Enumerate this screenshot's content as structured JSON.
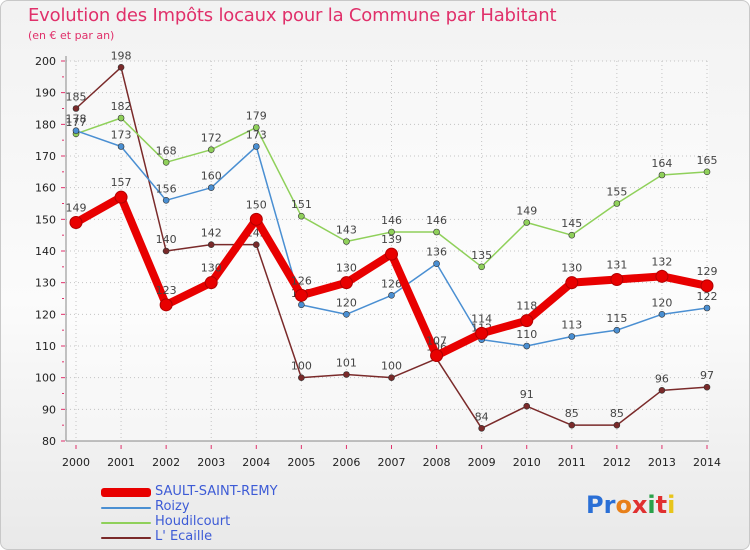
{
  "header": {
    "title": "Evolution des Impôts locaux pour la Commune par Habitant",
    "subtitle": "(en € et par an)"
  },
  "logo": {
    "text": "Proxiti",
    "colors": [
      "#2a6fd6",
      "#2a6fd6",
      "#e8801a",
      "#e03030",
      "#2aa14a",
      "#e03030",
      "#e8c51a"
    ]
  },
  "chart_data": {
    "type": "line",
    "x": [
      2000,
      2001,
      2002,
      2003,
      2004,
      2005,
      2006,
      2007,
      2008,
      2009,
      2010,
      2011,
      2012,
      2013,
      2014
    ],
    "ylim": [
      80,
      200
    ],
    "yticks": [
      80,
      90,
      100,
      110,
      120,
      130,
      140,
      150,
      160,
      170,
      180,
      190,
      200
    ],
    "grid": true,
    "legend_position": "bottom-left",
    "series": [
      {
        "name": "L' Ecaille",
        "color": "#7a2a2a",
        "values": [
          185,
          198,
          140,
          142,
          142,
          100,
          101,
          100,
          106,
          84,
          91,
          85,
          85,
          96,
          97
        ],
        "labels": [
          "185",
          "198",
          "140",
          "142",
          "142",
          "100",
          "101",
          "100",
          "106",
          "84",
          "91",
          "85",
          "85",
          "96",
          "97"
        ]
      },
      {
        "name": "Houdilcourt",
        "color": "#8fd05a",
        "values": [
          177,
          182,
          168,
          172,
          179,
          151,
          143,
          146,
          146,
          135,
          149,
          145,
          155,
          164,
          165
        ],
        "labels": [
          "177",
          "182",
          "168",
          "172",
          "179",
          "151",
          "143",
          "146",
          "146",
          "135",
          "149",
          "145",
          "155",
          "164",
          "165"
        ]
      },
      {
        "name": "Roizy",
        "color": "#4a8fd2",
        "values": [
          178,
          173,
          156,
          160,
          173,
          123,
          120,
          126,
          136,
          112,
          110,
          113,
          115,
          120,
          122
        ],
        "labels": [
          "178",
          "173",
          "156",
          "160",
          "173",
          "123",
          "120",
          "126",
          "136",
          "112",
          "110",
          "113",
          "115",
          "120",
          "122"
        ]
      },
      {
        "name": "SAULT-SAINT-REMY",
        "color": "#e80000",
        "values": [
          149,
          157,
          123,
          130,
          150,
          126,
          130,
          139,
          107,
          114,
          118,
          130,
          131,
          132,
          129
        ],
        "labels": [
          "149",
          "157",
          "123",
          "130",
          "150",
          "126",
          "130",
          "139",
          "107",
          "114",
          "118",
          "130",
          "131",
          "132",
          "129"
        ]
      }
    ]
  },
  "legend": [
    {
      "label": "SAULT-SAINT-REMY",
      "color": "#e80000",
      "thick": true
    },
    {
      "label": "Roizy",
      "color": "#4a8fd2",
      "thick": false
    },
    {
      "label": "Houdilcourt",
      "color": "#8fd05a",
      "thick": false
    },
    {
      "label": "L' Ecaille",
      "color": "#7a2a2a",
      "thick": false
    }
  ]
}
